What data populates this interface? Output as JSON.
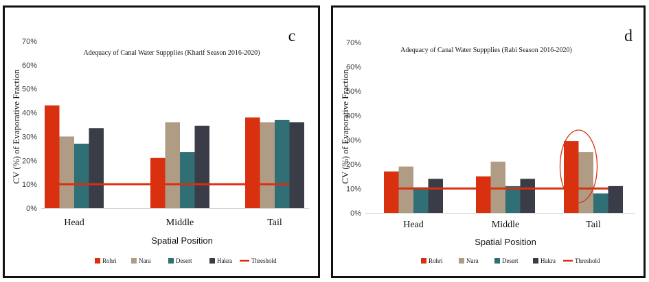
{
  "chart_data": [
    {
      "type": "bar",
      "panel_letter": "c",
      "title": "Adequacy of Canal Water Suppplies (Kharif Season 2016-2020)",
      "xlabel": "Spatial Position",
      "ylabel": "CV (%) of Evaporative Fraction",
      "categories": [
        "Head",
        "Middle",
        "Tail"
      ],
      "ylim": [
        0,
        70
      ],
      "ytick_labels": [
        "0%",
        "10%",
        "20%",
        "30%",
        "40%",
        "50%",
        "60%",
        "70%"
      ],
      "series": [
        {
          "name": "Rohri",
          "color": "#d9300f",
          "values": [
            43,
            21,
            38
          ]
        },
        {
          "name": "Nara",
          "color": "#b09c85",
          "values": [
            30,
            36,
            36
          ]
        },
        {
          "name": "Desert",
          "color": "#2f6f75",
          "values": [
            27,
            23.5,
            37
          ]
        },
        {
          "name": "Hakra",
          "color": "#3a3d47",
          "values": [
            33.5,
            34.5,
            36
          ]
        }
      ],
      "threshold": {
        "name": "Threshold",
        "value": 10,
        "color": "#d9300f"
      },
      "legend_position": "bottom"
    },
    {
      "type": "bar",
      "panel_letter": "d",
      "title": "Adequacy of Canal Water Suppplies (Rabi Season 2016-2020)",
      "xlabel": "Spatial Position",
      "ylabel": "CV (%) of Evaporative Fraction",
      "categories": [
        "Head",
        "Middle",
        "Tail"
      ],
      "ylim": [
        0,
        70
      ],
      "ytick_labels": [
        "0%",
        "10%",
        "20%",
        "30%",
        "40%",
        "50%",
        "60%",
        "70%"
      ],
      "series": [
        {
          "name": "Rohri",
          "color": "#d9300f",
          "values": [
            17,
            15,
            29.5
          ]
        },
        {
          "name": "Nara",
          "color": "#b09c85",
          "values": [
            19,
            21,
            25
          ]
        },
        {
          "name": "Desert",
          "color": "#2f6f75",
          "values": [
            10.5,
            11,
            8
          ]
        },
        {
          "name": "Hakra",
          "color": "#3a3d47",
          "values": [
            14,
            14,
            11
          ]
        }
      ],
      "threshold": {
        "name": "Threshold",
        "value": 10,
        "color": "#d9300f"
      },
      "highlight": {
        "category": "Tail",
        "shape": "ellipse"
      },
      "legend_position": "bottom"
    }
  ]
}
